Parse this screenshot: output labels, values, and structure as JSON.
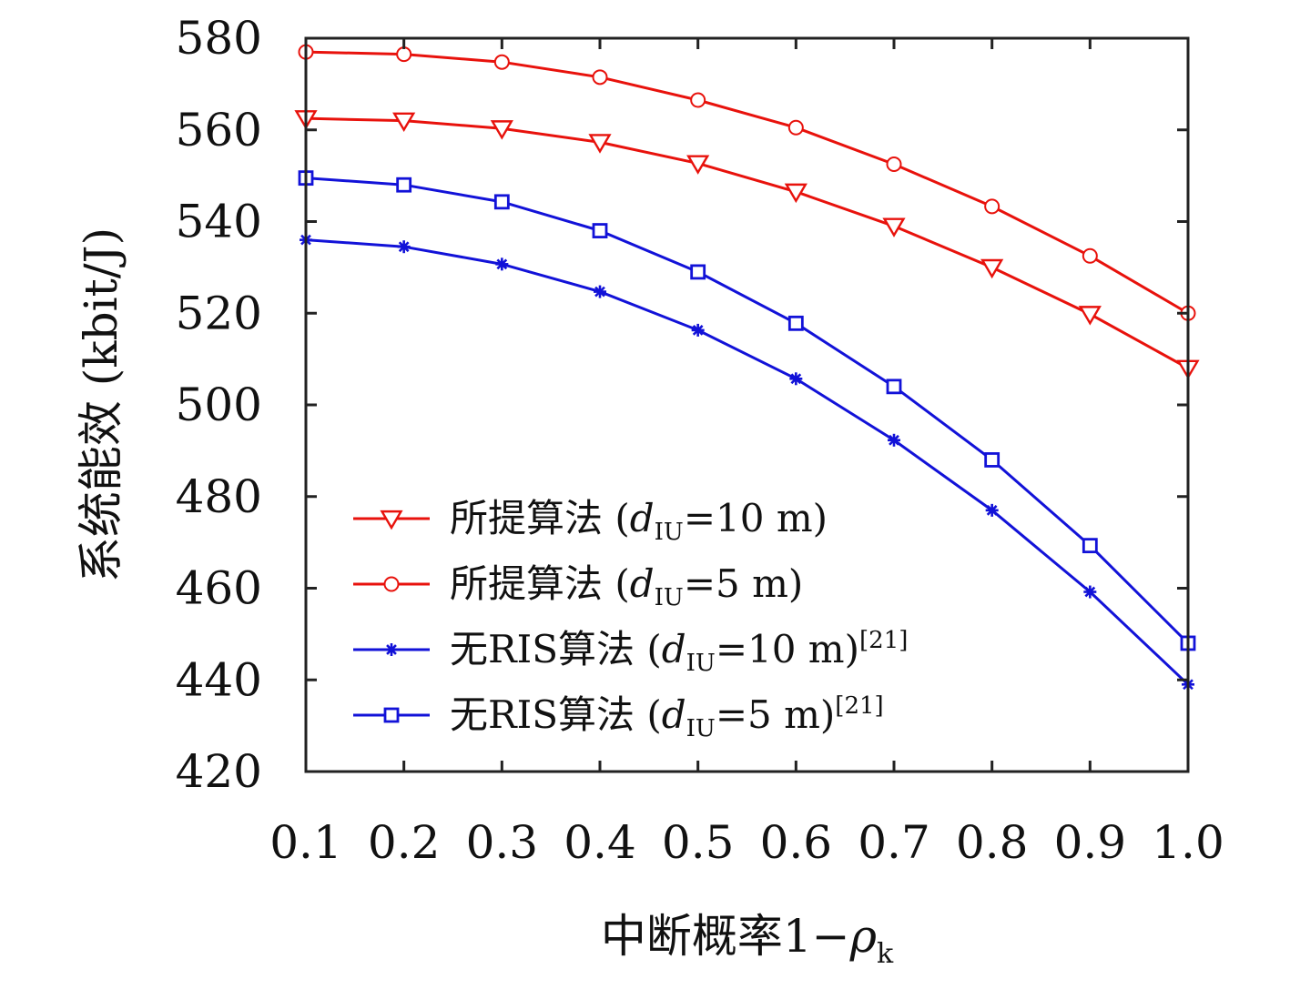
{
  "chart_data": {
    "type": "line",
    "title": "",
    "xlabel": {
      "main": "中断概率1−",
      "symbol": "ρ",
      "sub": "k"
    },
    "ylabel": "系统能效 (kbit/J)",
    "xlim": [
      0.1,
      1.0
    ],
    "ylim": [
      420,
      580
    ],
    "x": [
      0.1,
      0.2,
      0.3,
      0.4,
      0.5,
      0.6,
      0.7,
      0.8,
      0.9,
      1.0
    ],
    "x_tick_labels": [
      "0.1",
      "0.2",
      "0.3",
      "0.4",
      "0.5",
      "0.6",
      "0.7",
      "0.8",
      "0.9",
      "1.0"
    ],
    "y_ticks": [
      420,
      440,
      460,
      480,
      500,
      520,
      540,
      560,
      580
    ],
    "y_tick_labels": [
      "420",
      "440",
      "460",
      "480",
      "500",
      "520",
      "540",
      "560",
      "580"
    ],
    "grid": false,
    "legend_position": "lower-left",
    "series": [
      {
        "name": "所提算法 (dIU=10 m)",
        "legend": {
          "prefix": "所提算法 (",
          "var": "d",
          "sub": "IU",
          "suffix": "=10 m)",
          "ref": ""
        },
        "color": "#e8120c",
        "marker": "triangle-down",
        "values": [
          562.5,
          562.0,
          560.3,
          557.3,
          552.7,
          546.5,
          539.0,
          530.0,
          519.8,
          508.0
        ]
      },
      {
        "name": "所提算法 (dIU=5 m)",
        "legend": {
          "prefix": "所提算法 (",
          "var": "d",
          "sub": "IU",
          "suffix": "=5 m)",
          "ref": ""
        },
        "color": "#e8120c",
        "marker": "circle",
        "values": [
          577.0,
          576.5,
          574.8,
          571.5,
          566.5,
          560.5,
          552.5,
          543.3,
          532.5,
          520.0
        ]
      },
      {
        "name": "无RIS算法 (dIU=10 m)[21]",
        "legend": {
          "prefix": "无RIS算法 (",
          "var": "d",
          "sub": "IU",
          "suffix": "=10 m)",
          "ref": "[21]"
        },
        "color": "#1212d8",
        "marker": "asterisk",
        "values": [
          536.0,
          534.5,
          530.7,
          524.7,
          516.3,
          505.7,
          492.3,
          477.0,
          459.2,
          439.0
        ]
      },
      {
        "name": "无RIS算法 (dIU=5 m)[21]",
        "legend": {
          "prefix": "无RIS算法 (",
          "var": "d",
          "sub": "IU",
          "suffix": "=5 m)",
          "ref": "[21]"
        },
        "color": "#1212d8",
        "marker": "square",
        "values": [
          549.5,
          548.0,
          544.3,
          538.0,
          529.0,
          517.8,
          504.0,
          488.0,
          469.3,
          448.0
        ]
      }
    ]
  }
}
